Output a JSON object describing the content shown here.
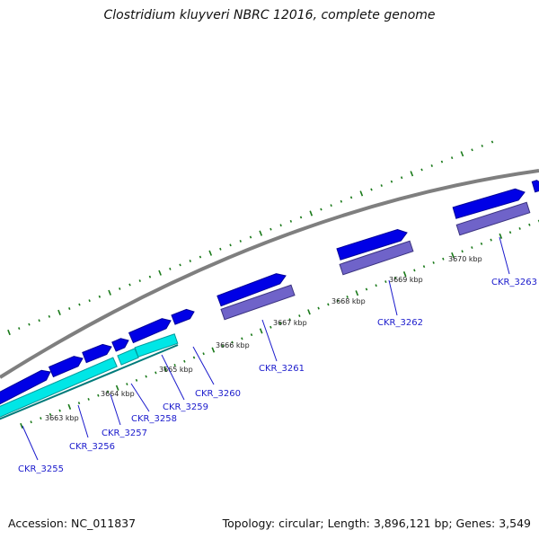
{
  "title": "Clostridium kluyveri NBRC 12016, complete genome",
  "footer": {
    "accession": "Accession: NC_011837",
    "topology": "Topology: circular; Length: 3,896,121 bp; Genes: 3,549"
  },
  "colors": {
    "backbone": "#7f7f7f",
    "gene_forward": "#0000e6",
    "gene_cds_highlight": "#00e6e6",
    "gene_reverse": "#6f63c9",
    "tick": "#1a7a1a",
    "label": "#1a1acc"
  },
  "scale_labels": [
    "3663 kbp",
    "3664 kbp",
    "3665 kbp",
    "3666 kbp",
    "3667 kbp",
    "3668 kbp",
    "3669 kbp",
    "3670 kbp"
  ],
  "genes": [
    {
      "id": "CKR_3255",
      "strand": "forward",
      "style": "blue-cyan"
    },
    {
      "id": "CKR_3256",
      "strand": "forward",
      "style": "blue-cyan"
    },
    {
      "id": "CKR_3257",
      "strand": "forward",
      "style": "blue-cyan"
    },
    {
      "id": "CKR_3258",
      "strand": "forward",
      "style": "blue-cyan"
    },
    {
      "id": "CKR_3259",
      "strand": "forward",
      "style": "blue"
    },
    {
      "id": "CKR_3260",
      "strand": "forward",
      "style": "blue"
    },
    {
      "id": "CKR_3261",
      "strand": "forward",
      "style": "blue-purple"
    },
    {
      "id": "CKR_3262",
      "strand": "forward",
      "style": "blue-purple"
    },
    {
      "id": "CKR_3263",
      "strand": "forward",
      "style": "blue-purple"
    }
  ]
}
